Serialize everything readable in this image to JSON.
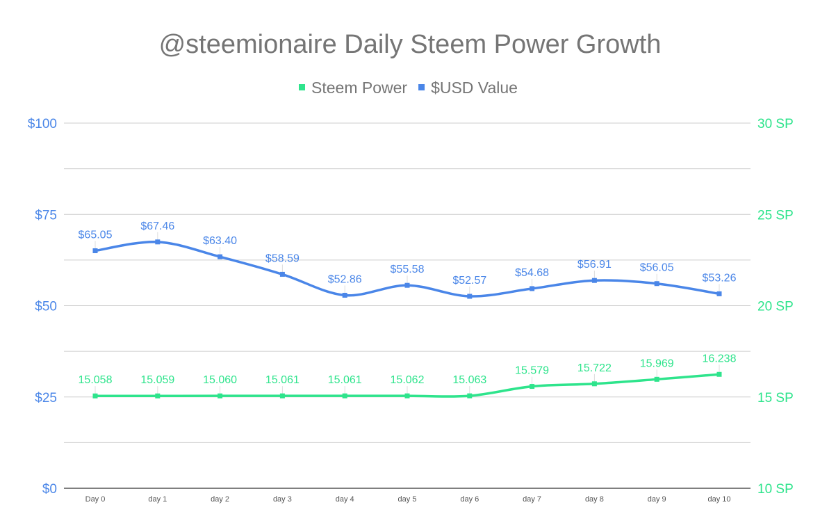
{
  "chart_data": {
    "type": "line",
    "title": "@steemionaire Daily Steem Power Growth",
    "categories": [
      "Day 0",
      "day 1",
      "day 2",
      "day 3",
      "day 4",
      "day 5",
      "day 6",
      "day 7",
      "day 8",
      "day 9",
      "day 10"
    ],
    "series": [
      {
        "name": "Steem Power",
        "axis": "right",
        "color": "#2ee48c",
        "values": [
          15.058,
          15.059,
          15.06,
          15.061,
          15.061,
          15.062,
          15.063,
          15.579,
          15.722,
          15.969,
          16.238
        ],
        "labels": [
          "15.058",
          "15.059",
          "15.060",
          "15.061",
          "15.061",
          "15.062",
          "15.063",
          "15.579",
          "15.722",
          "15.969",
          "16.238"
        ]
      },
      {
        "name": "$USD Value",
        "axis": "left",
        "color": "#4a86e8",
        "values": [
          65.05,
          67.46,
          63.4,
          58.59,
          52.86,
          55.58,
          52.57,
          54.68,
          56.91,
          56.05,
          53.26
        ],
        "labels": [
          "$65.05",
          "$67.46",
          "$63.40",
          "$58.59",
          "$52.86",
          "$55.58",
          "$52.57",
          "$54.68",
          "$56.91",
          "$56.05",
          "$53.26"
        ]
      }
    ],
    "left_axis": {
      "range": [
        0,
        100
      ],
      "ticks": [
        "$0",
        "$25",
        "$50",
        "$75",
        "$100"
      ],
      "color": "#4a86e8"
    },
    "right_axis": {
      "range": [
        10,
        30
      ],
      "ticks": [
        "10 SP",
        "15 SP",
        "20 SP",
        "25 SP",
        "30 SP"
      ],
      "color": "#2ee48c"
    },
    "grid": true,
    "legend_position": "top",
    "smooth": true
  }
}
